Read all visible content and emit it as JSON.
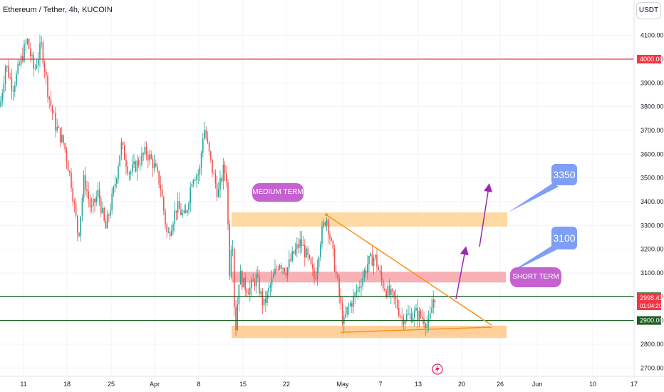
{
  "header": {
    "title": "Ethereum / Tether, 4h, KUCOIN",
    "currency_button": "USDT"
  },
  "chart_data": {
    "type": "candlestick",
    "symbol": "ETH/USDT",
    "ylim": [
      2680,
      4160
    ],
    "y_ticks": [
      4100,
      4000,
      3900,
      3800,
      3700,
      3600,
      3500,
      3400,
      3300,
      3200,
      3100,
      3000,
      2900,
      2800,
      2700
    ],
    "x_ticks": [
      "11",
      "18",
      "25",
      "Apr",
      "8",
      "15",
      "22",
      "May",
      "7",
      "13",
      "20",
      "26",
      "Jun",
      "10",
      "17"
    ],
    "price_path": [
      [
        0,
        3800
      ],
      [
        8,
        3980
      ],
      [
        18,
        3880
      ],
      [
        28,
        3980
      ],
      [
        38,
        4080
      ],
      [
        48,
        3950
      ],
      [
        58,
        4060
      ],
      [
        68,
        3850
      ],
      [
        78,
        3720
      ],
      [
        90,
        3640
      ],
      [
        100,
        3480
      ],
      [
        110,
        3250
      ],
      [
        118,
        3500
      ],
      [
        128,
        3360
      ],
      [
        138,
        3440
      ],
      [
        148,
        3280
      ],
      [
        160,
        3450
      ],
      [
        170,
        3640
      ],
      [
        182,
        3520
      ],
      [
        195,
        3570
      ],
      [
        205,
        3610
      ],
      [
        215,
        3560
      ],
      [
        225,
        3470
      ],
      [
        235,
        3250
      ],
      [
        248,
        3380
      ],
      [
        260,
        3330
      ],
      [
        270,
        3510
      ],
      [
        280,
        3520
      ],
      [
        286,
        3720
      ],
      [
        296,
        3560
      ],
      [
        306,
        3430
      ],
      [
        314,
        3540
      ],
      [
        318,
        3500
      ],
      [
        322,
        3100
      ],
      [
        326,
        3300
      ],
      [
        330,
        2830
      ],
      [
        336,
        3100
      ],
      [
        342,
        3050
      ],
      [
        350,
        3030
      ],
      [
        360,
        3080
      ],
      [
        370,
        2960
      ],
      [
        380,
        3050
      ],
      [
        392,
        3150
      ],
      [
        402,
        3110
      ],
      [
        412,
        3180
      ],
      [
        422,
        3230
      ],
      [
        432,
        3160
      ],
      [
        442,
        3070
      ],
      [
        450,
        3250
      ],
      [
        458,
        3340
      ],
      [
        466,
        3200
      ],
      [
        474,
        3050
      ],
      [
        482,
        2880
      ],
      [
        488,
        2950
      ],
      [
        496,
        2990
      ],
      [
        506,
        3060
      ],
      [
        516,
        3140
      ],
      [
        526,
        3170
      ],
      [
        536,
        3060
      ],
      [
        546,
        3010
      ],
      [
        554,
        2990
      ],
      [
        564,
        2910
      ],
      [
        574,
        2920
      ],
      [
        584,
        2930
      ],
      [
        594,
        2910
      ],
      [
        602,
        2880
      ],
      [
        608,
        2990
      ],
      [
        612,
        3010
      ]
    ],
    "horizontal_levels": [
      {
        "price": 4000,
        "label": "4000.00",
        "color": "#f23645"
      },
      {
        "price": 3000,
        "label": "3000.00",
        "color": "#1b5e20"
      },
      {
        "price": 2900,
        "label": "2900.00",
        "color": "#1b5e20"
      }
    ],
    "current_price": {
      "price": "2998.43",
      "countdown": "01:04:20",
      "color": "#f23645"
    },
    "zones": [
      {
        "from": 3295,
        "to": 3355,
        "color": "#ffd9a3"
      },
      {
        "from": 3060,
        "to": 3105,
        "color": "#f7b1b4"
      },
      {
        "from": 2826,
        "to": 2878,
        "color": "#ffd09a"
      }
    ],
    "annotations": {
      "medium_term": "MEDIUM TERM",
      "short_term": "SHORT TERM",
      "target_1": "3350",
      "target_2": "3100"
    },
    "colors": {
      "up": "#26a69a",
      "down": "#ef5350",
      "triangle": "#f7931a",
      "arrow": "#9c27b0",
      "callout": "#7e9ff5"
    }
  }
}
